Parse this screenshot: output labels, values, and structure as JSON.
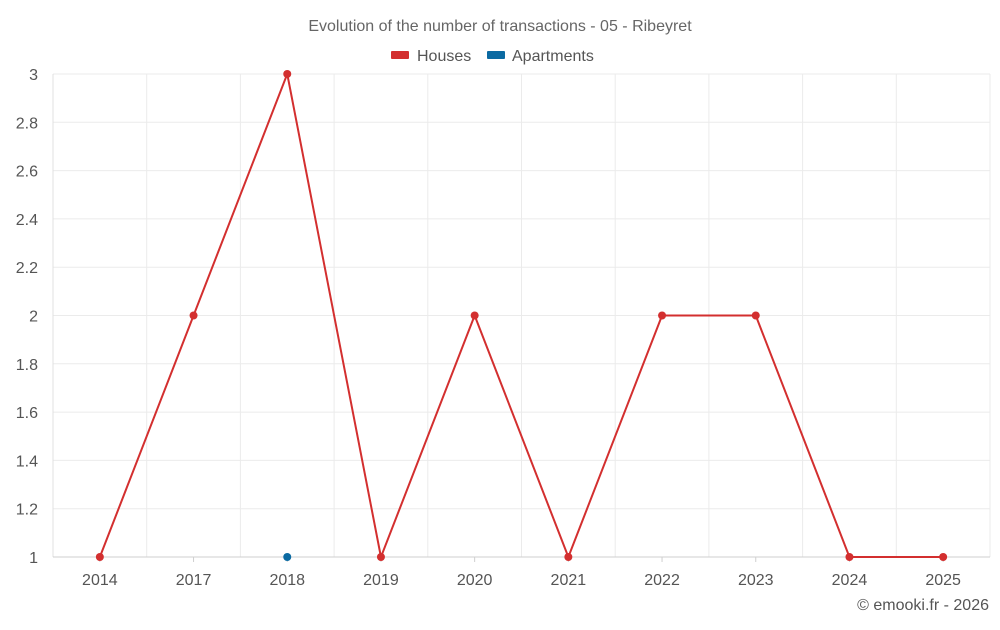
{
  "chart_data": {
    "type": "line",
    "title": "Evolution of the number of transactions - 05 - Ribeyret",
    "categories": [
      "2014",
      "2017",
      "2018",
      "2019",
      "2020",
      "2021",
      "2022",
      "2023",
      "2024",
      "2025"
    ],
    "ylim": [
      1,
      3
    ],
    "yticks": [
      "1",
      "1.2",
      "1.4",
      "1.6",
      "1.8",
      "2",
      "2.2",
      "2.4",
      "2.6",
      "2.8",
      "3"
    ],
    "grid": true,
    "legend_position": "top-center",
    "series": [
      {
        "name": "Houses",
        "color": "#d32f2f",
        "values": [
          1,
          2,
          3,
          1,
          2,
          1,
          2,
          2,
          1,
          1
        ]
      },
      {
        "name": "Apartments",
        "color": "#0b6aa2",
        "values": [
          null,
          null,
          1,
          null,
          null,
          null,
          null,
          null,
          null,
          null
        ]
      }
    ]
  },
  "footer": {
    "credit": "© emooki.fr - 2026"
  }
}
